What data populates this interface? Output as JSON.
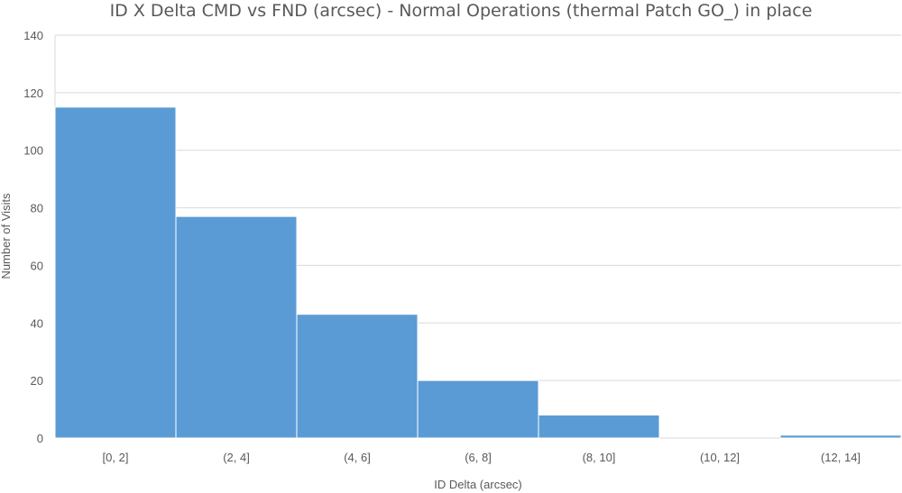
{
  "chart_data": {
    "type": "bar",
    "title": "ID X Delta CMD vs FND (arcsec) - Normal Operations (thermal Patch GO_) in place",
    "xlabel": "ID Delta (arcsec)",
    "ylabel": "Number of Visits",
    "categories": [
      "[0, 2]",
      "(2, 4]",
      "(4, 6]",
      "(6, 8]",
      "(8, 10]",
      "(10, 12]",
      "(12, 14]"
    ],
    "values": [
      115,
      77,
      43,
      20,
      8,
      0,
      1
    ],
    "ylim": [
      0,
      140
    ],
    "yticks": [
      0,
      20,
      40,
      60,
      80,
      100,
      120,
      140
    ],
    "grid": true,
    "legend": "none",
    "bar_color": "#5b9bd5",
    "grid_color": "#d9d9d9",
    "text_color": "#595959"
  }
}
